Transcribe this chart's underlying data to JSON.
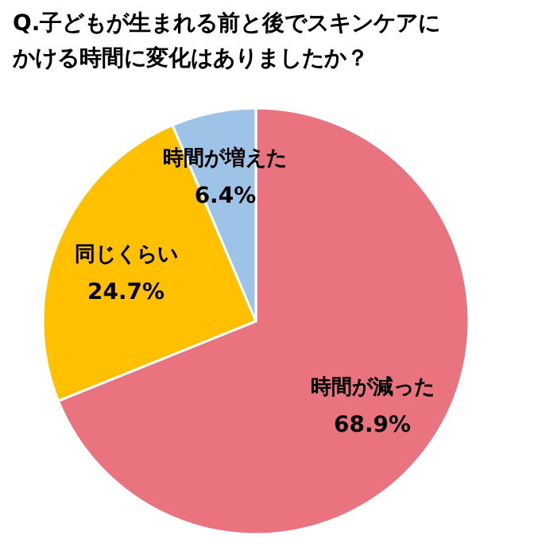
{
  "chart_data": {
    "type": "pie",
    "title": "Q.子どもが生まれる前と後でスキンケアにかける時間に変化はありましたか？",
    "categories": [
      "時間が減った",
      "同じくらい",
      "時間が増えた"
    ],
    "values": [
      68.9,
      24.7,
      6.4
    ],
    "colors": [
      "#e9737f",
      "#ffc000",
      "#9dc3e6"
    ],
    "value_labels": [
      "68.9%",
      "24.7%",
      "6.4%"
    ]
  }
}
